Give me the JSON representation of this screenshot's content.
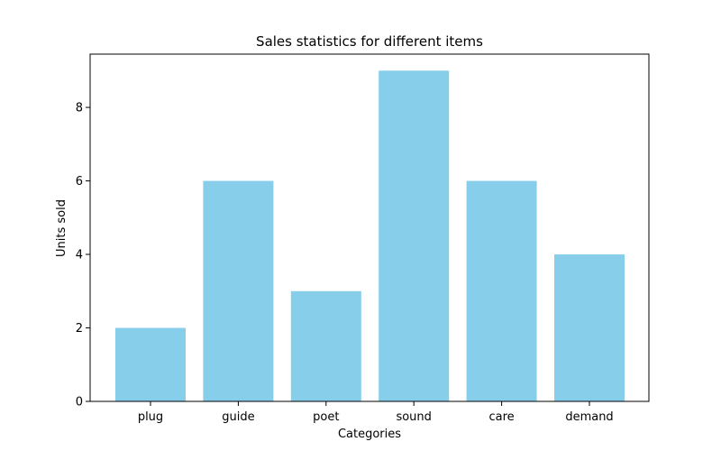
{
  "chart_data": {
    "type": "bar",
    "title": "Sales statistics for different items",
    "xlabel": "Categories",
    "ylabel": "Units sold",
    "categories": [
      "plug",
      "guide",
      "poet",
      "sound",
      "care",
      "demand"
    ],
    "values": [
      2,
      6,
      3,
      9,
      6,
      4
    ],
    "ylim": [
      0,
      9.45
    ],
    "yticks": [
      0,
      2,
      4,
      6,
      8
    ],
    "bar_color": "#87CEEB",
    "grid": false
  }
}
